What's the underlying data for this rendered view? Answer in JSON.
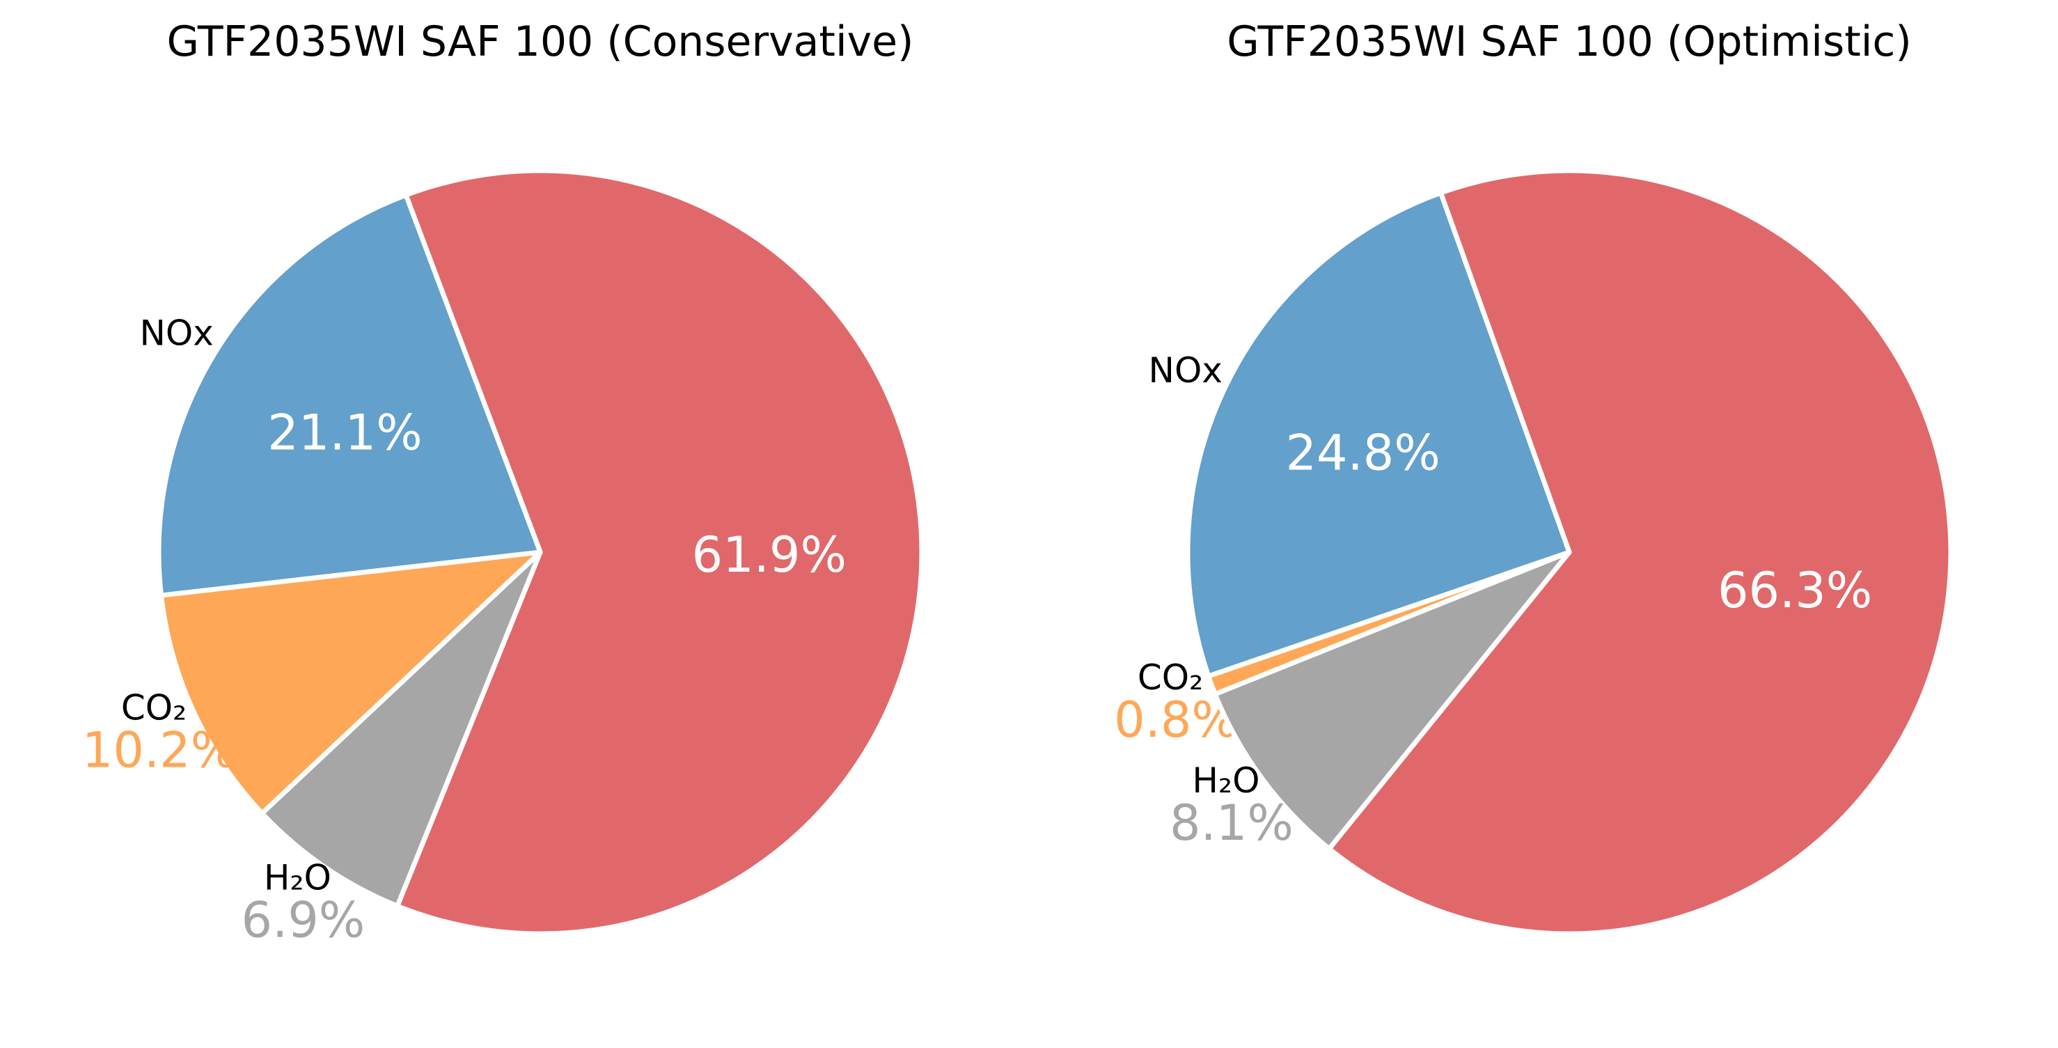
{
  "chart_data": [
    {
      "type": "pie",
      "title": "GTF2035WI SAF 100 (Conservative)",
      "slices": [
        {
          "label": "",
          "value": 61.9,
          "pct_label": "61.9%",
          "color": "#e1686a",
          "label_inside": true
        },
        {
          "label": "NOx",
          "value": 21.1,
          "pct_label": "21.1%",
          "color": "#63a0cb",
          "label_inside": true
        },
        {
          "label": "CO₂",
          "value": 10.2,
          "pct_label": "10.2%",
          "color": "#fea757",
          "label_inside": false
        },
        {
          "label": "H₂O",
          "value": 6.9,
          "pct_label": "6.9%",
          "color": "#a6a6a6",
          "label_inside": false
        }
      ]
    },
    {
      "type": "pie",
      "title": "GTF2035WI SAF 100 (Optimistic)",
      "slices": [
        {
          "label": "",
          "value": 66.3,
          "pct_label": "66.3%",
          "color": "#e1686a",
          "label_inside": true
        },
        {
          "label": "NOx",
          "value": 24.8,
          "pct_label": "24.8%",
          "color": "#63a0cb",
          "label_inside": true
        },
        {
          "label": "CO₂",
          "value": 0.8,
          "pct_label": "0.8%",
          "color": "#fea757",
          "label_inside": false
        },
        {
          "label": "H₂O",
          "value": 8.1,
          "pct_label": "8.1%",
          "color": "#a6a6a6",
          "label_inside": false
        }
      ]
    }
  ]
}
